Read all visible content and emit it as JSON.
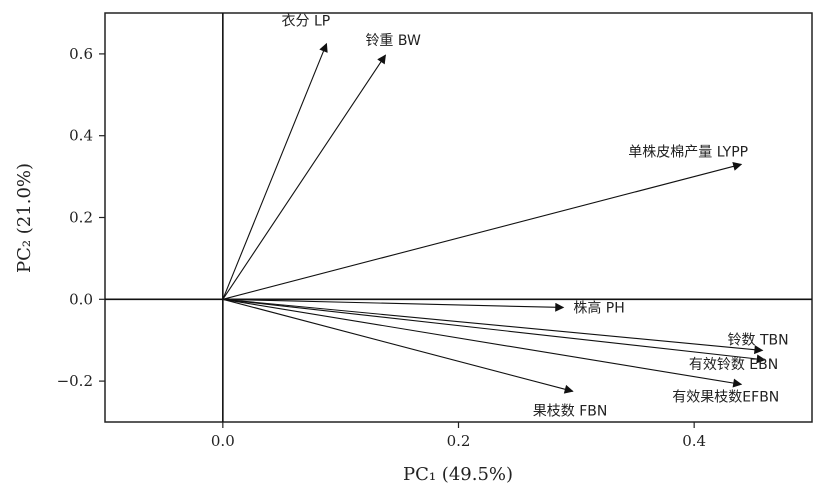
{
  "chart_data": {
    "type": "scatter",
    "subtype": "biplot-vectors",
    "xlabel": "PC₁ (49.5%)",
    "ylabel": "PC₂ (21.0%)",
    "xlim": [
      -0.1,
      0.5
    ],
    "ylim": [
      -0.3,
      0.7
    ],
    "xticks": [
      {
        "value": 0.0,
        "label": "0.0"
      },
      {
        "value": 0.2,
        "label": "0.2"
      },
      {
        "value": 0.4,
        "label": "0.4"
      }
    ],
    "yticks": [
      {
        "value": -0.2,
        "label": "−0.2"
      },
      {
        "value": 0.0,
        "label": "0.0"
      },
      {
        "value": 0.2,
        "label": "0.2"
      },
      {
        "value": 0.4,
        "label": "0.4"
      },
      {
        "value": 0.6,
        "label": "0.6"
      }
    ],
    "grid": false,
    "reference_lines": {
      "x": 0,
      "y": 0
    },
    "vectors": [
      {
        "label": "衣分  LP",
        "x": 0.088,
        "y": 0.625
      },
      {
        "label": "铃重  BW",
        "x": 0.138,
        "y": 0.597
      },
      {
        "label": "单株皮棉产量  LYPP",
        "x": 0.44,
        "y": 0.33
      },
      {
        "label": "株高  PH",
        "x": 0.289,
        "y": -0.02
      },
      {
        "label": "铃数  TBN",
        "x": 0.458,
        "y": -0.125
      },
      {
        "label": "有效铃数  EBN",
        "x": 0.46,
        "y": -0.148
      },
      {
        "label": "有效果枝数EFBN",
        "x": 0.44,
        "y": -0.208
      },
      {
        "label": "果枝数  FBN",
        "x": 0.297,
        "y": -0.225
      }
    ]
  }
}
